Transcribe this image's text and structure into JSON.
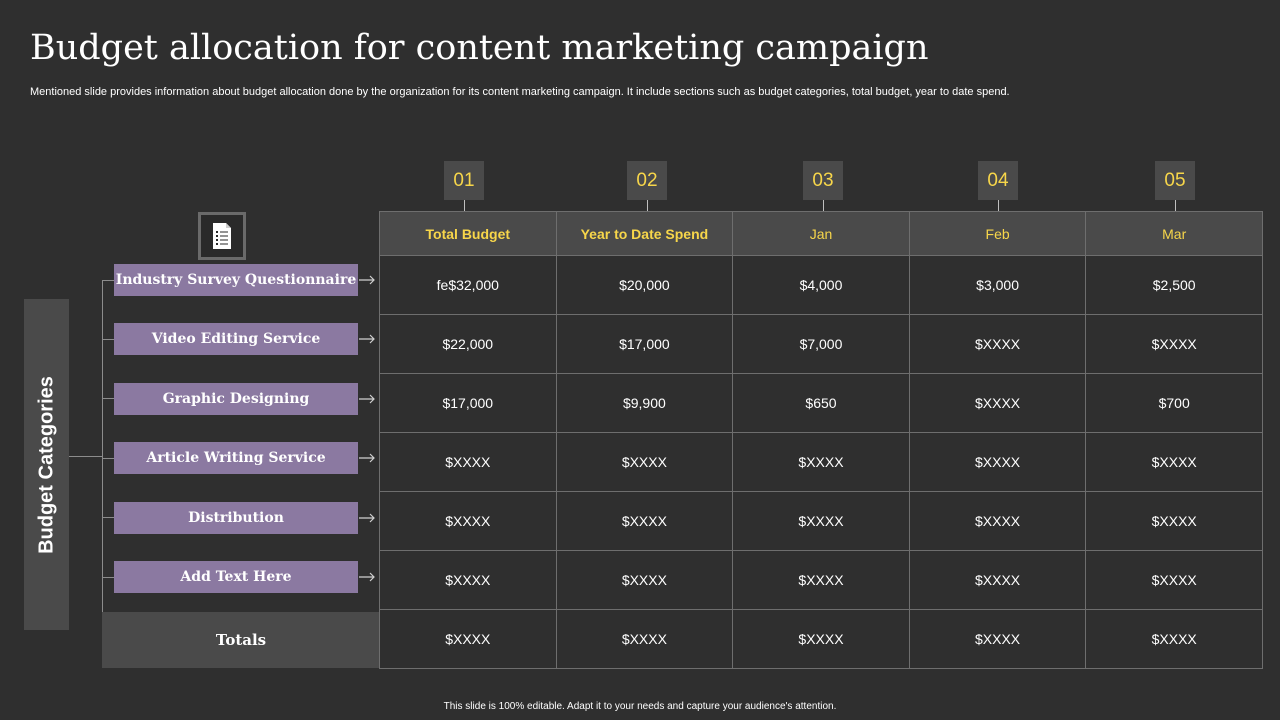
{
  "slide": {
    "title": "Budget allocation for content marketing campaign",
    "subtitle": "Mentioned slide provides information about budget allocation done by the organization for its content marketing campaign. It include sections such as budget categories, total budget, year to date spend.",
    "side_label": "Budget Categories",
    "footer": "This slide is 100% editable.  Adapt it to your needs and capture your audience's attention.",
    "icon": "document-icon"
  },
  "colors": {
    "background": "#2f2f2f",
    "accent": "#f7d64a",
    "category_fill": "#8b79a1",
    "panel": "#4a4a4a"
  },
  "numbers": [
    "01",
    "02",
    "03",
    "04",
    "05"
  ],
  "table": {
    "headers": [
      "Total Budget",
      "Year to Date Spend",
      "Jan",
      "Feb",
      "Mar"
    ],
    "rows": [
      {
        "label": "Industry Survey Questionnaire",
        "values": [
          "fe$32,000",
          "$20,000",
          "$4,000",
          "$3,000",
          "$2,500"
        ]
      },
      {
        "label": "Video Editing Service",
        "values": [
          "$22,000",
          "$17,000",
          "$7,000",
          "$XXXX",
          "$XXXX"
        ]
      },
      {
        "label": "Graphic Designing",
        "values": [
          "$17,000",
          "$9,900",
          "$650",
          "$XXXX",
          "$700"
        ]
      },
      {
        "label": "Article Writing Service",
        "values": [
          "$XXXX",
          "$XXXX",
          "$XXXX",
          "$XXXX",
          "$XXXX"
        ]
      },
      {
        "label": "Distribution",
        "values": [
          "$XXXX",
          "$XXXX",
          "$XXXX",
          "$XXXX",
          "$XXXX"
        ]
      },
      {
        "label": "Add Text Here",
        "values": [
          "$XXXX",
          "$XXXX",
          "$XXXX",
          "$XXXX",
          "$XXXX"
        ]
      }
    ],
    "totals": {
      "label": "Totals",
      "values": [
        "$XXXX",
        "$XXXX",
        "$XXXX",
        "$XXXX",
        "$XXXX"
      ]
    }
  }
}
